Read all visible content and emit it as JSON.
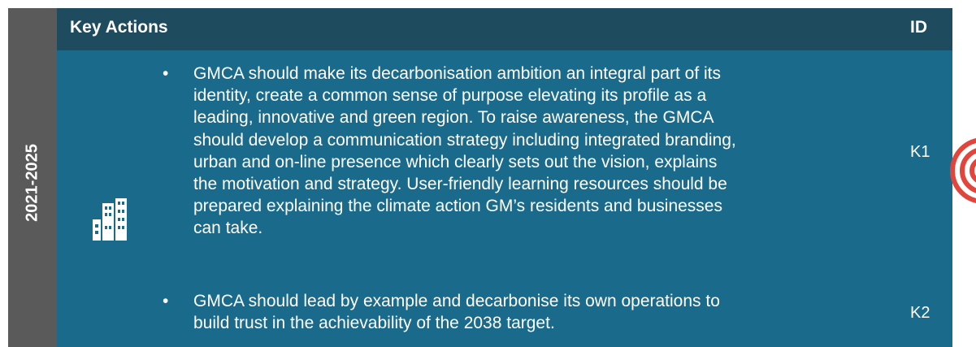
{
  "period": "2021-2025",
  "header": {
    "title": "Key Actions",
    "id_label": "ID"
  },
  "items": [
    {
      "lines": [
        "GMCA should make its decarbonisation ambition an integral part of its",
        "identity, create a common sense of purpose elevating its profile as a",
        "leading, innovative and green region. To raise awareness, the GMCA",
        "should develop a communication strategy including integrated branding,",
        "urban and on-line presence which clearly sets out the vision, explains",
        "the motivation and strategy. User-friendly learning resources should be",
        "prepared explaining the climate action GM’s residents and businesses",
        "can take."
      ],
      "id": "K1"
    },
    {
      "lines": [
        "GMCA should lead by example and decarbonise its own operations to",
        "build trust in the achievability of the 2038 target."
      ],
      "id": "K2"
    }
  ]
}
